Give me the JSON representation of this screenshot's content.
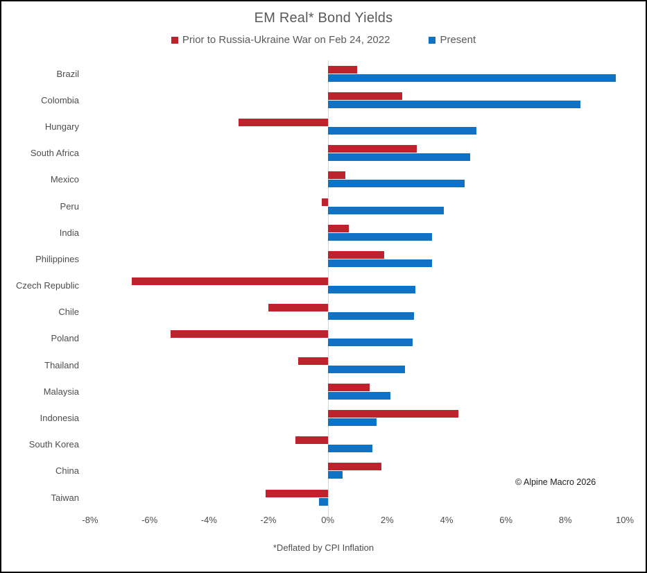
{
  "title": "EM Real* Bond Yields",
  "legend": {
    "items": [
      {
        "label": "Prior to Russia-Ukraine War on Feb 24, 2022",
        "color": "#be232d"
      },
      {
        "label": "Present",
        "color": "#1072c4"
      }
    ]
  },
  "footnote": "*Deflated by CPI Inflation",
  "copyright": "© Alpine Macro 2026",
  "colors": {
    "prior_red": "#be232d",
    "present_blue": "#1072c4",
    "text_gray": "#595959",
    "zero_line": "#d6d6d6"
  },
  "chart_data": {
    "type": "bar",
    "orientation": "horizontal",
    "title": "EM Real* Bond Yields",
    "xlabel": "",
    "ylabel": "",
    "unit": "%",
    "xlim": [
      -8,
      10
    ],
    "grid": false,
    "legend_position": "top",
    "categories": [
      "Brazil",
      "Colombia",
      "Hungary",
      "South Africa",
      "Mexico",
      "Peru",
      "India",
      "Philippines",
      "Czech Republic",
      "Chile",
      "Poland",
      "Thailand",
      "Malaysia",
      "Indonesia",
      "South Korea",
      "China",
      "Taiwan"
    ],
    "series": [
      {
        "name": "Prior to Russia-Ukraine War on Feb 24, 2022",
        "color": "#be232d",
        "values": [
          1.0,
          2.5,
          -3.0,
          3.0,
          0.6,
          -0.2,
          0.7,
          1.9,
          -6.6,
          -2.0,
          -5.3,
          -1.0,
          1.4,
          4.4,
          -1.1,
          1.8,
          -2.1
        ]
      },
      {
        "name": "Present",
        "color": "#1072c4",
        "values": [
          9.7,
          8.5,
          5.0,
          4.8,
          4.6,
          3.9,
          3.5,
          3.5,
          2.95,
          2.9,
          2.85,
          2.6,
          2.1,
          1.65,
          1.5,
          0.5,
          -0.3
        ]
      }
    ],
    "xticks": [
      "-8%",
      "-6%",
      "-4%",
      "-2%",
      "0%",
      "2%",
      "4%",
      "6%",
      "8%",
      "10%"
    ],
    "xtick_values": [
      -8,
      -6,
      -4,
      -2,
      0,
      2,
      4,
      6,
      8,
      10
    ]
  }
}
